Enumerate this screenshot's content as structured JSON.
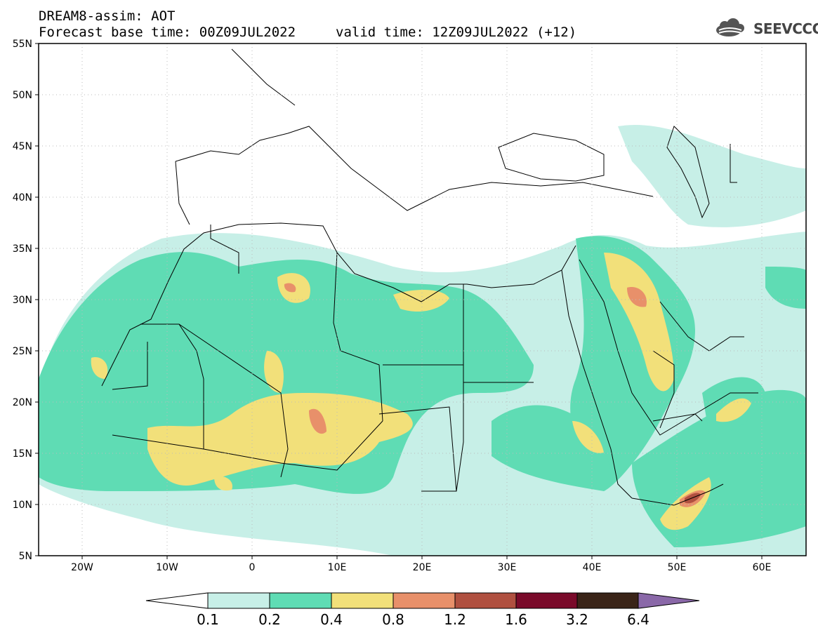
{
  "header": {
    "line1": "DREAM8-assim: AOT",
    "line2": "Forecast base time: 00Z09JUL2022",
    "valid": "valid time: 12Z09JUL2022 (+12)",
    "logo_text": "SEEVCCC"
  },
  "map": {
    "lon_range": [
      -25,
      65
    ],
    "lat_range": [
      5,
      55
    ],
    "lat_ticks": [
      "55N",
      "50N",
      "45N",
      "40N",
      "35N",
      "30N",
      "25N",
      "20N",
      "15N",
      "10N",
      "5N"
    ],
    "lon_ticks": [
      "20W",
      "10W",
      "0",
      "10E",
      "20E",
      "30E",
      "40E",
      "50E",
      "60E"
    ],
    "grid": "dotted"
  },
  "colorbar": {
    "labels": [
      "0.1",
      "0.2",
      "0.4",
      "0.8",
      "1.2",
      "1.6",
      "3.2",
      "6.4"
    ],
    "colors": [
      "#ffffff",
      "#c7efe7",
      "#5fdcb4",
      "#f2e07a",
      "#e8906a",
      "#b05040",
      "#7a0a2a",
      "#3a2418",
      "#8a68a8"
    ]
  },
  "colors": {
    "light": "#c7efe7",
    "green": "#5fdcb4",
    "yellow": "#f2e07a",
    "orange": "#e8906a",
    "red": "#b05040"
  }
}
